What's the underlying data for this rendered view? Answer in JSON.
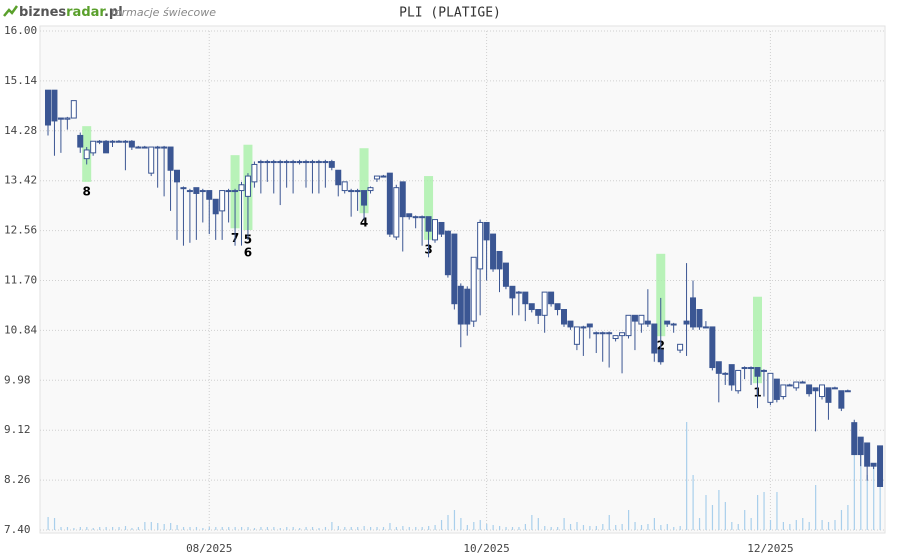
{
  "chart_data": {
    "type": "candlestick",
    "title": "PLI (PLATIGE)",
    "logo": {
      "part1": "biznes",
      "part2": "radar",
      "part3": ".pl",
      "subtitle": "formacje świecowe"
    },
    "ylim": [
      7.4,
      16.0
    ],
    "yticks": [
      {
        "value": 7.4,
        "label": "7.40"
      },
      {
        "value": 8.26,
        "label": "8.26"
      },
      {
        "value": 9.12,
        "label": "9.12"
      },
      {
        "value": 9.98,
        "label": "9.98"
      },
      {
        "value": 10.84,
        "label": "10.84"
      },
      {
        "value": 11.7,
        "label": "11.70"
      },
      {
        "value": 12.56,
        "label": "12.56"
      },
      {
        "value": 13.42,
        "label": "13.42"
      },
      {
        "value": 14.28,
        "label": "14.28"
      },
      {
        "value": 15.14,
        "label": "15.14"
      },
      {
        "value": 16.0,
        "label": "16.00"
      }
    ],
    "grid": true,
    "up_color": "#ffffff",
    "down_color": "#3b5693",
    "line_color": "#3b5693",
    "volume_color": "#a9cfec",
    "pattern_color": "#a8f0a8",
    "categories": [
      null,
      null,
      null,
      null,
      null,
      null,
      null,
      null,
      null,
      null,
      null,
      null,
      null,
      null,
      null,
      null,
      null,
      null,
      null,
      null,
      null,
      null,
      null,
      null,
      null,
      "08/2025",
      null,
      null,
      null,
      null,
      null,
      null,
      null,
      null,
      null,
      null,
      null,
      null,
      null,
      null,
      null,
      null,
      null,
      null,
      null,
      null,
      null,
      null,
      null,
      null,
      null,
      null,
      null,
      null,
      null,
      null,
      null,
      null,
      null,
      null,
      null,
      null,
      null,
      null,
      null,
      null,
      null,
      null,
      "10/2025",
      null,
      null,
      null,
      null,
      null,
      null,
      null,
      null,
      null,
      null,
      null,
      null,
      null,
      null,
      null,
      null,
      null,
      null,
      null,
      null,
      null,
      null,
      null,
      null,
      null,
      null,
      null,
      null,
      null,
      null,
      null,
      null,
      null,
      null,
      null,
      null,
      null,
      null,
      null,
      null,
      null,
      null,
      null,
      "12/2025",
      null,
      null,
      null,
      null,
      null,
      null,
      null,
      null,
      null,
      null,
      null,
      null,
      null,
      null,
      null,
      null,
      null
    ],
    "open": [
      14.98,
      14.98,
      14.5,
      14.48,
      14.5,
      14.2,
      13.8,
      13.9,
      14.1,
      14.1,
      14.1,
      14.1,
      14.1,
      14.1,
      14.0,
      14.0,
      13.55,
      14.0,
      14.0,
      14.0,
      13.6,
      13.3,
      13.25,
      13.3,
      13.25,
      13.25,
      13.1,
      12.9,
      13.25,
      13.25,
      13.25,
      13.15,
      13.4,
      13.75,
      13.75,
      13.75,
      13.75,
      13.75,
      13.75,
      13.75,
      13.75,
      13.75,
      13.75,
      13.75,
      13.75,
      13.6,
      13.25,
      13.25,
      13.25,
      13.25,
      13.25,
      13.45,
      13.5,
      13.55,
      12.45,
      13.4,
      12.85,
      12.8,
      12.8,
      12.8,
      12.4,
      12.7,
      12.55,
      12.5,
      11.6,
      11.55,
      11.0,
      11.9,
      12.7,
      12.5,
      12.2,
      12.0,
      11.6,
      11.5,
      11.5,
      11.3,
      11.2,
      11.1,
      11.5,
      11.3,
      11.2,
      11.0,
      10.6,
      10.9,
      10.95,
      10.8,
      10.8,
      10.8,
      10.7,
      10.75,
      10.75,
      11.1,
      10.95,
      11.0,
      10.95,
      10.5,
      11.0,
      10.95,
      10.5,
      11.0,
      11.4,
      11.2,
      10.9,
      10.9,
      10.3,
      10.1,
      10.25,
      9.8,
      10.2,
      10.2,
      10.2,
      10.15,
      9.6,
      10.0,
      9.7,
      9.9,
      9.85,
      9.95,
      9.9,
      9.85,
      9.7,
      9.85,
      9.85,
      9.8,
      9.8,
      9.25,
      9.0,
      8.9,
      8.55,
      8.85
    ],
    "high": [
      14.98,
      14.98,
      14.5,
      14.52,
      14.8,
      14.25,
      14.0,
      14.1,
      14.12,
      14.12,
      14.12,
      14.12,
      14.12,
      14.12,
      14.02,
      14.02,
      14.0,
      14.02,
      14.02,
      14.0,
      13.6,
      13.32,
      13.28,
      13.3,
      13.28,
      13.25,
      13.1,
      13.25,
      13.28,
      13.28,
      13.4,
      13.55,
      13.75,
      13.78,
      13.78,
      13.78,
      13.78,
      13.78,
      13.78,
      13.78,
      13.78,
      13.78,
      13.78,
      13.78,
      13.78,
      13.6,
      13.4,
      13.28,
      13.28,
      13.25,
      13.32,
      13.5,
      13.52,
      13.55,
      13.35,
      13.4,
      12.85,
      12.82,
      12.82,
      12.8,
      12.75,
      12.7,
      12.55,
      12.5,
      11.65,
      11.6,
      12.1,
      12.75,
      12.7,
      12.5,
      12.2,
      12.0,
      11.6,
      11.52,
      11.5,
      11.3,
      11.2,
      11.5,
      11.5,
      11.3,
      11.2,
      11.0,
      10.9,
      10.92,
      10.95,
      10.82,
      10.82,
      10.82,
      10.75,
      10.8,
      11.1,
      11.1,
      11.1,
      11.55,
      10.95,
      11.4,
      11.0,
      10.97,
      10.6,
      12.0,
      11.7,
      11.2,
      11.0,
      10.9,
      10.3,
      10.12,
      10.25,
      10.15,
      10.22,
      10.22,
      10.2,
      10.17,
      10.1,
      10.0,
      9.9,
      9.92,
      9.95,
      9.97,
      9.9,
      9.85,
      9.9,
      9.85,
      9.87,
      9.8,
      9.82,
      9.3,
      9.0,
      8.9,
      8.55,
      8.85
    ],
    "low": [
      14.2,
      13.85,
      13.9,
      14.3,
      14.5,
      13.9,
      13.7,
      13.85,
      14.05,
      13.9,
      14.0,
      14.08,
      13.6,
      13.95,
      13.98,
      13.98,
      13.5,
      13.3,
      13.15,
      12.9,
      12.4,
      12.3,
      12.35,
      12.4,
      12.7,
      12.5,
      12.4,
      12.4,
      12.7,
      12.3,
      12.3,
      12.4,
      13.3,
      13.2,
      13.4,
      13.2,
      13.0,
      13.3,
      13.2,
      13.7,
      13.3,
      13.2,
      13.2,
      13.3,
      13.6,
      13.15,
      13.2,
      12.8,
      12.9,
      12.75,
      13.2,
      13.4,
      13.48,
      12.45,
      12.4,
      12.2,
      12.75,
      12.6,
      12.3,
      12.1,
      12.35,
      12.45,
      11.75,
      11.2,
      10.55,
      10.75,
      10.9,
      11.1,
      11.7,
      11.85,
      11.5,
      11.55,
      11.1,
      11.1,
      11.0,
      11.15,
      10.95,
      10.8,
      11.25,
      11.1,
      10.9,
      10.85,
      10.5,
      10.4,
      10.7,
      10.45,
      10.3,
      10.2,
      10.65,
      10.1,
      10.7,
      10.5,
      10.8,
      10.9,
      10.3,
      10.25,
      10.9,
      10.8,
      10.45,
      10.4,
      10.85,
      10.85,
      10.88,
      10.15,
      9.6,
      9.9,
      9.8,
      9.75,
      10.0,
      9.9,
      9.5,
      9.7,
      9.55,
      9.6,
      9.65,
      9.88,
      9.8,
      9.93,
      9.7,
      9.1,
      9.65,
      9.3,
      9.83,
      9.45,
      9.78,
      8.7,
      8.5,
      8.25,
      8.45,
      8.15
    ],
    "close": [
      14.38,
      14.45,
      14.48,
      14.5,
      14.8,
      14.0,
      13.95,
      14.1,
      14.1,
      13.9,
      14.1,
      14.1,
      14.1,
      14.0,
      14.0,
      14.0,
      14.0,
      14.0,
      14.0,
      13.6,
      13.4,
      13.3,
      13.25,
      13.2,
      13.25,
      13.1,
      12.85,
      13.25,
      13.25,
      13.25,
      13.35,
      13.5,
      13.7,
      13.75,
      13.75,
      13.75,
      13.75,
      13.75,
      13.75,
      13.75,
      13.75,
      13.75,
      13.75,
      13.75,
      13.65,
      13.35,
      13.4,
      13.25,
      13.25,
      13.0,
      13.3,
      13.5,
      13.5,
      12.5,
      13.3,
      12.8,
      12.8,
      12.8,
      12.8,
      12.55,
      12.75,
      12.5,
      11.8,
      11.3,
      10.95,
      10.95,
      12.1,
      12.7,
      12.4,
      11.9,
      11.9,
      11.6,
      11.4,
      11.5,
      11.3,
      11.2,
      11.1,
      11.5,
      11.3,
      11.2,
      10.95,
      10.9,
      10.9,
      10.9,
      10.9,
      10.8,
      10.8,
      10.8,
      10.75,
      10.8,
      11.1,
      11.0,
      11.1,
      10.95,
      10.45,
      10.3,
      10.95,
      10.95,
      10.6,
      10.95,
      10.9,
      10.9,
      10.9,
      10.2,
      10.1,
      10.1,
      9.9,
      10.15,
      10.2,
      10.2,
      10.05,
      10.15,
      10.1,
      9.65,
      9.9,
      9.9,
      9.95,
      9.95,
      9.75,
      9.8,
      9.9,
      9.6,
      9.85,
      9.5,
      9.8,
      8.7,
      8.7,
      8.5,
      8.5,
      8.15
    ],
    "volume": [
      13,
      12,
      3,
      3,
      2,
      3,
      3,
      2,
      3,
      3,
      3,
      3,
      4,
      2,
      3,
      8,
      8,
      7,
      6,
      7,
      5,
      3,
      3,
      3,
      2,
      3,
      3,
      3,
      3,
      3,
      3,
      3,
      2,
      3,
      3,
      3,
      2,
      3,
      3,
      2,
      3,
      3,
      2,
      3,
      8,
      4,
      3,
      3,
      3,
      4,
      3,
      3,
      3,
      7,
      3,
      4,
      3,
      3,
      3,
      4,
      5,
      10,
      15,
      20,
      12,
      5,
      8,
      10,
      6,
      5,
      4,
      3,
      3,
      3,
      6,
      15,
      12,
      4,
      3,
      3,
      12,
      6,
      8,
      5,
      4,
      4,
      6,
      15,
      5,
      6,
      20,
      8,
      5,
      6,
      12,
      5,
      6,
      3,
      4,
      108,
      55,
      12,
      35,
      25,
      40,
      28,
      8,
      6,
      20,
      12,
      35,
      38,
      10,
      38,
      8,
      6,
      10,
      12,
      8,
      45,
      10,
      8,
      10,
      20,
      25,
      90,
      75,
      55,
      65,
      80
    ],
    "patterns": [
      {
        "label": "8",
        "index": 6,
        "top": 14.36,
        "bottom": 13.4
      },
      {
        "label": "7",
        "index": 29,
        "top": 13.86,
        "bottom": 12.6
      },
      {
        "label": "5",
        "index": 31,
        "top": 14.04,
        "bottom": 12.57
      },
      {
        "label": "6",
        "index": 31,
        "top": 14.04,
        "bottom": 12.57
      },
      {
        "label": "4",
        "index": 49,
        "top": 13.98,
        "bottom": 12.86
      },
      {
        "label": "3",
        "index": 59,
        "top": 13.5,
        "bottom": 12.4
      },
      {
        "label": "2",
        "index": 95,
        "top": 12.16,
        "bottom": 10.74
      },
      {
        "label": "1",
        "index": 110,
        "top": 11.42,
        "bottom": 9.93
      }
    ]
  }
}
